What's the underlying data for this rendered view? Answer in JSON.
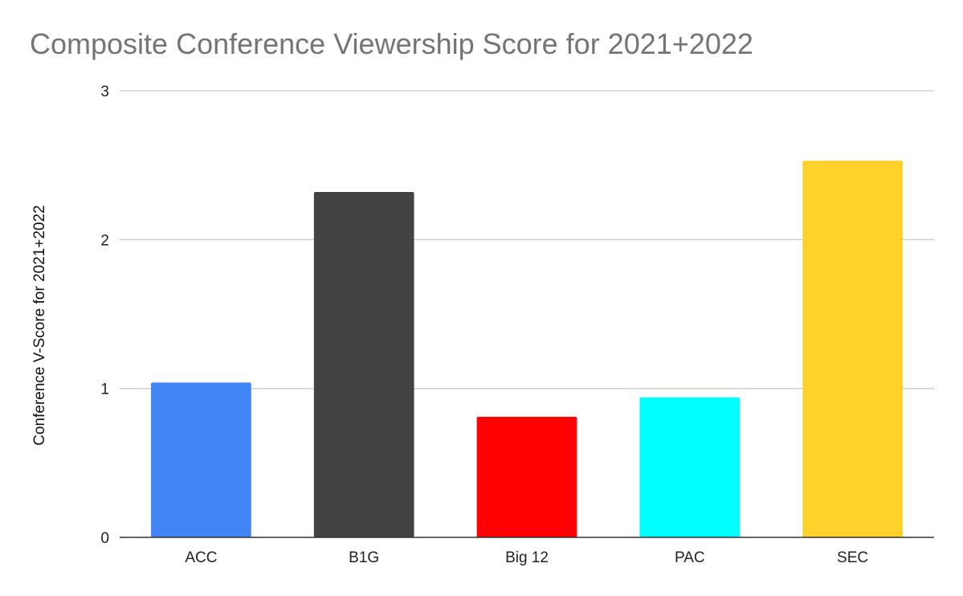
{
  "chart_data": {
    "type": "bar",
    "title": "Composite Conference Viewership Score for 2021+2022",
    "xlabel": "",
    "ylabel": "Conference V-Score for 2021+2022",
    "ylim": [
      0,
      3
    ],
    "yticks": [
      "0",
      "1",
      "2",
      "3"
    ],
    "grid": true,
    "legend": "none",
    "categories": [
      "ACC",
      "B1G",
      "Big 12",
      "PAC",
      "SEC"
    ],
    "values": [
      1.04,
      2.32,
      0.81,
      0.94,
      2.53
    ],
    "colors": [
      "#4285f4",
      "#434343",
      "#ff0000",
      "#00ffff",
      "#ffd12a"
    ],
    "axis_color": "#333333",
    "grid_color": "#cccccc"
  }
}
